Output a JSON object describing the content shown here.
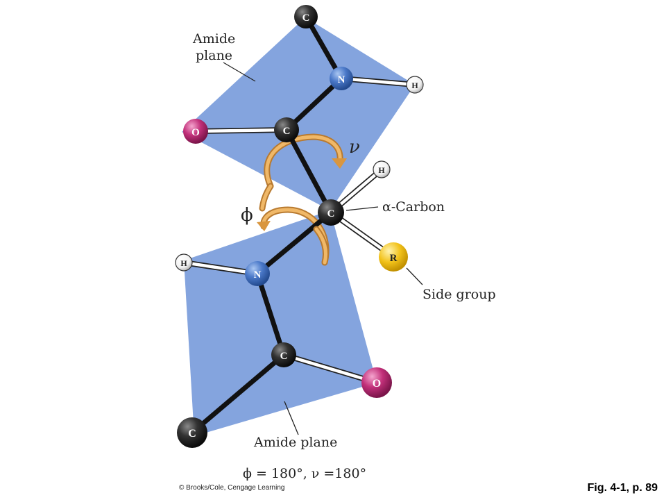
{
  "labels": {
    "amide_plane_top_line1": "Amide",
    "amide_plane_top_line2": "plane",
    "alpha_carbon": "α-Carbon",
    "side_group": "Side group",
    "amide_plane_bottom": "Amide plane",
    "phi_symbol": "ϕ",
    "psi_symbol": "ν",
    "angle_equation": "ϕ = 180°, ν =180°"
  },
  "atoms": {
    "carbon": "C",
    "nitrogen": "N",
    "oxygen": "O",
    "hydrogen": "H",
    "side_chain": "R"
  },
  "footer": {
    "credit": "© Brooks/Cole, Cengage Learning",
    "figure_ref": "Fig. 4-1, p. 89"
  },
  "colors": {
    "plane": "#7d9fdc",
    "carbon": "#2a2a2a",
    "nitrogen": "#4a78c8",
    "oxygen": "#c2307a",
    "hydrogen": "#ffffff",
    "side_group": "#f2c21a",
    "rotation_arrow": "#e0a050",
    "bond": "#111111"
  }
}
